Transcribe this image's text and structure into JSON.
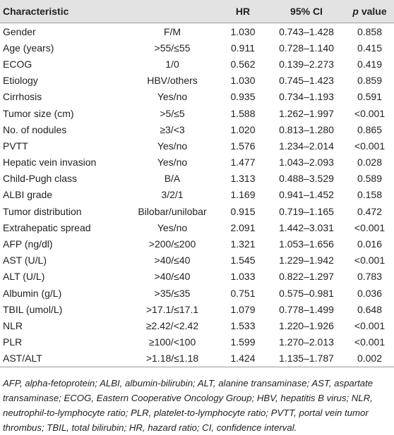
{
  "header": {
    "characteristic": "Characteristic",
    "hr": "HR",
    "ci": "95% CI",
    "p_symbol": "p",
    "p_label": "value"
  },
  "table": {
    "rows": [
      [
        "Gender",
        "F/M",
        "1.030",
        "0.743–1.428",
        "0.858"
      ],
      [
        "Age (years)",
        ">55/≤55",
        "0.911",
        "0.728–1.140",
        "0.415"
      ],
      [
        "ECOG",
        "1/0",
        "0.562",
        "0.139–2.273",
        "0.419"
      ],
      [
        "Etiology",
        "HBV/others",
        "1.030",
        "0.745–1.423",
        "0.859"
      ],
      [
        "Cirrhosis",
        "Yes/no",
        "0.935",
        "0.734–1.193",
        "0.591"
      ],
      [
        "Tumor size (cm)",
        ">5/≤5",
        "1.588",
        "1.262–1.997",
        "<0.001"
      ],
      [
        "No. of nodules",
        "≥3/<3",
        "1.020",
        "0.813–1.280",
        "0.865"
      ],
      [
        "PVTT",
        "Yes/no",
        "1.576",
        "1.234–2.014",
        "<0.001"
      ],
      [
        "Hepatic vein invasion",
        "Yes/no",
        "1.477",
        "1.043–2.093",
        "0.028"
      ],
      [
        "Child-Pugh class",
        "B/A",
        "1.313",
        "0.488–3.529",
        "0.589"
      ],
      [
        "ALBI grade",
        "3/2/1",
        "1.169",
        "0.941–1.452",
        "0.158"
      ],
      [
        "Tumor distribution",
        "Bilobar/unilobar",
        "0.915",
        "0.719–1.165",
        "0.472"
      ],
      [
        "Extrahepatic spread",
        "Yes/no",
        "2.091",
        "1.442–3.031",
        "<0.001"
      ],
      [
        "AFP (ng/dl)",
        ">200/≤200",
        "1.321",
        "1.053–1.656",
        "0.016"
      ],
      [
        "AST (U/L)",
        ">40/≤40",
        "1.545",
        "1.229–1.942",
        "<0.001"
      ],
      [
        "ALT (U/L)",
        ">40/≤40",
        "1.033",
        "0.822–1.297",
        "0.783"
      ],
      [
        "Albumin (g/L)",
        ">35/≤35",
        "0.751",
        "0.575–0.981",
        "0.036"
      ],
      [
        "TBIL (umol/L)",
        ">17.1/≤17.1",
        "1.079",
        "0.778–1.499",
        "0.648"
      ],
      [
        "NLR",
        "≥2.42/<2.42",
        "1.533",
        "1.220–1.926",
        "<0.001"
      ],
      [
        "PLR",
        "≥100/<100",
        "1.599",
        "1.270–2.013",
        "<0.001"
      ],
      [
        "AST/ALT",
        ">1.18/≤1.18",
        "1.424",
        "1.135–1.787",
        "0.002"
      ]
    ]
  },
  "footnote": "AFP, alpha-fetoprotein; ALBI, albumin-bilirubin; ALT, alanine transaminase; AST, aspartate transaminase; ECOG, Eastern Cooperative Oncology Group; HBV, hepatitis B virus; NLR, neutrophil-to-lymphocyte ratio; PLR, platelet-to-lymphocyte ratio; PVTT, portal vein tumor thrombus; TBIL, total bilirubin; HR, hazard ratio; CI, confidence interval."
}
